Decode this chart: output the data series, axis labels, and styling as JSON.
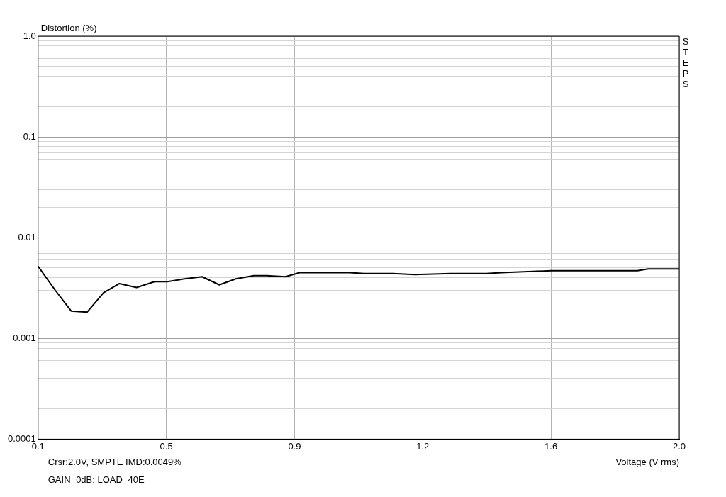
{
  "chart_data": {
    "type": "line",
    "xlabel": "Voltage (V rms)",
    "ylabel": "Distortion (%)",
    "log": "y",
    "grid": true,
    "legend": false,
    "marker": "none",
    "line_style": "solid",
    "xlim": [
      0.1,
      2.0
    ],
    "ylim": [
      0.0001,
      1
    ],
    "xticks": [
      0.1,
      {
        "value": 0.48,
        "label": "0.5"
      },
      {
        "value": 0.86,
        "label": "0.9"
      },
      {
        "value": 1.24,
        "label": "1.2"
      },
      {
        "value": 1.62,
        "label": "1.6"
      },
      {
        "value": 2.0,
        "label": "2.0"
      }
    ],
    "yticks": [
      {
        "value": 0.0001,
        "label": "0.0001"
      },
      {
        "value": 0.0002,
        "label": null
      },
      {
        "value": 0.0003,
        "label": null
      },
      {
        "value": 0.0004,
        "label": null
      },
      {
        "value": 0.0005,
        "label": null
      },
      {
        "value": 0.0006,
        "label": null
      },
      {
        "value": 0.0007,
        "label": null
      },
      {
        "value": 0.0008,
        "label": null
      },
      {
        "value": 0.0009,
        "label": null
      },
      {
        "value": 0.001,
        "label": "0.001"
      },
      {
        "value": 0.002,
        "label": null
      },
      {
        "value": 0.003,
        "label": null
      },
      {
        "value": 0.004,
        "label": null
      },
      {
        "value": 0.005,
        "label": null
      },
      {
        "value": 0.006,
        "label": null
      },
      {
        "value": 0.007,
        "label": null
      },
      {
        "value": 0.008,
        "label": null
      },
      {
        "value": 0.009,
        "label": null
      },
      {
        "value": 0.01,
        "label": "0.01"
      },
      {
        "value": 0.02,
        "label": null
      },
      {
        "value": 0.03,
        "label": null
      },
      {
        "value": 0.04,
        "label": null
      },
      {
        "value": 0.05,
        "label": null
      },
      {
        "value": 0.06,
        "label": null
      },
      {
        "value": 0.07,
        "label": null
      },
      {
        "value": 0.08,
        "label": null
      },
      {
        "value": 0.09,
        "label": null
      },
      {
        "value": 0.1,
        "label": "0.1"
      },
      {
        "value": 0.2,
        "label": null
      },
      {
        "value": 0.3,
        "label": null
      },
      {
        "value": 0.4,
        "label": null
      },
      {
        "value": 0.5,
        "label": null
      },
      {
        "value": 0.6,
        "label": null
      },
      {
        "value": 0.7,
        "label": null
      },
      {
        "value": 0.8,
        "label": null
      },
      {
        "value": 0.9,
        "label": null
      },
      {
        "value": 1,
        "label": "1.0"
      }
    ],
    "series": [
      {
        "color": "#000000",
        "x": [
          0.1,
          0.151,
          0.198,
          0.245,
          0.294,
          0.341,
          0.392,
          0.445,
          0.483,
          0.534,
          0.586,
          0.637,
          0.686,
          0.739,
          0.777,
          0.833,
          0.875,
          1.024,
          1.067,
          1.152,
          1.216,
          1.323,
          1.429,
          1.472,
          1.621,
          1.876,
          1.908,
          2.0
        ],
        "values": [
          0.0052,
          0.003,
          0.00187,
          0.00182,
          0.00284,
          0.0035,
          0.0032,
          0.00366,
          0.00366,
          0.0039,
          0.0041,
          0.0034,
          0.0039,
          0.0042,
          0.0042,
          0.0041,
          0.0045,
          0.0045,
          0.0044,
          0.0044,
          0.0043,
          0.0044,
          0.0044,
          0.0045,
          0.0047,
          0.0047,
          0.0049,
          0.0049
        ]
      }
    ],
    "annotations": [
      "Crsr:2.0V, SMPTE IMD:0.0049%",
      "GAIN=0dB; LOAD=40E",
      "STEPS"
    ]
  }
}
